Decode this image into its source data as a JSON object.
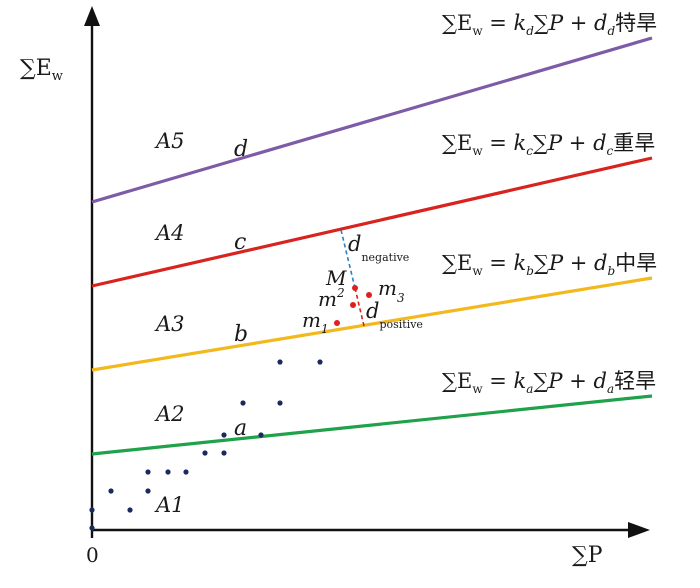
{
  "axes": {
    "y_label": "∑E",
    "y_label_sub": "w",
    "x_label": "∑P",
    "origin_label": "0"
  },
  "lines": [
    {
      "id": "a",
      "color": "#1fa24a",
      "eq_sum": "∑E",
      "eq_sub": "w",
      "eq_mid": " = k",
      "eq_k": "a",
      "eq_p": "∑P + d",
      "eq_d": "a",
      "eq_cn": "轻旱"
    },
    {
      "id": "b",
      "color": "#f2b81c",
      "eq_sum": "∑E",
      "eq_sub": "w",
      "eq_mid": " = k",
      "eq_k": "b",
      "eq_p": "∑P + d",
      "eq_d": "b",
      "eq_cn": "中旱"
    },
    {
      "id": "c",
      "color": "#d8231f",
      "eq_sum": "∑E",
      "eq_sub": "w",
      "eq_mid": " = k",
      "eq_k": "c",
      "eq_p": "∑P + d",
      "eq_d": "c",
      "eq_cn": "重旱"
    },
    {
      "id": "d",
      "color": "#7d5ba6",
      "eq_sum": "∑E",
      "eq_sub": "w",
      "eq_mid": " = k",
      "eq_k": "d",
      "eq_p": "∑P + d",
      "eq_d": "d",
      "eq_cn": "特旱"
    }
  ],
  "line_labels": {
    "a": "a",
    "b": "b",
    "c": "c",
    "d": "d"
  },
  "regions": [
    "A1",
    "A2",
    "A3",
    "A4",
    "A5"
  ],
  "points": {
    "M": "M",
    "m1": "m",
    "m1_sub": "1",
    "m2": "m",
    "m2_sub": "2",
    "m3": "m",
    "m3_sub": "3",
    "d_negative": "d",
    "d_negative_sub": "negative",
    "d_positive": "d",
    "d_positive_sub": "positive"
  },
  "colors": {
    "axis": "#111111",
    "scatter": "#1b2a5e",
    "highlight": "#e02020",
    "negative_dash": "#2a7fc8",
    "positive_dash": "#d8231f"
  }
}
